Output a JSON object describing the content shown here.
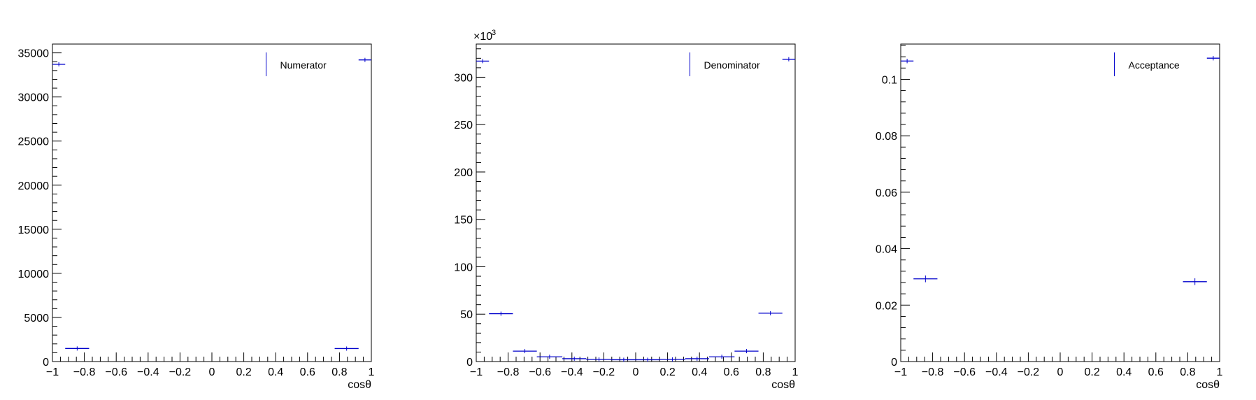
{
  "chart_data": [
    {
      "type": "histogram",
      "xlabel": "cosθ",
      "ylabel": "",
      "xlim": [
        -1,
        1
      ],
      "ylim": [
        0,
        36000
      ],
      "y_multiplier_label": "",
      "x_ticks": [
        "−1",
        "−0.8",
        "−0.6",
        "−0.4",
        "−0.2",
        "0",
        "0.2",
        "0.4",
        "0.6",
        "0.8",
        "1"
      ],
      "y_ticks": [
        "0",
        "5000",
        "10000",
        "15000",
        "20000",
        "25000",
        "30000",
        "35000"
      ],
      "y_tick_values": [
        0,
        5000,
        10000,
        15000,
        20000,
        25000,
        30000,
        35000
      ],
      "legend": {
        "label": "Numerator",
        "position": "top-right"
      },
      "line_color": "#0000cc",
      "bins": [
        {
          "x0": -1.0,
          "x1": -0.92,
          "y": 33700,
          "err": 180
        },
        {
          "x0": -0.92,
          "x1": -0.77,
          "y": 1480,
          "err": 40
        },
        {
          "x0": 0.77,
          "x1": 0.92,
          "y": 1470,
          "err": 40
        },
        {
          "x0": 0.92,
          "x1": 1.0,
          "y": 34200,
          "err": 180
        }
      ]
    },
    {
      "type": "histogram",
      "xlabel": "cosθ",
      "ylabel": "",
      "xlim": [
        -1,
        1
      ],
      "ylim": [
        0,
        335
      ],
      "y_multiplier_label": "×10",
      "y_multiplier_exp": "3",
      "x_ticks": [
        "−1",
        "−0.8",
        "−0.6",
        "−0.4",
        "−0.2",
        "0",
        "0.2",
        "0.4",
        "0.6",
        "0.8",
        "1"
      ],
      "y_ticks": [
        "0",
        "50",
        "100",
        "150",
        "200",
        "250",
        "300"
      ],
      "y_tick_values": [
        0,
        50,
        100,
        150,
        200,
        250,
        300
      ],
      "legend": {
        "label": "Denominator",
        "position": "top-right"
      },
      "line_color": "#0000cc",
      "bins": [
        {
          "x0": -1.0,
          "x1": -0.92,
          "y": 317,
          "err": 1
        },
        {
          "x0": -0.92,
          "x1": -0.77,
          "y": 50.5,
          "err": 0.4
        },
        {
          "x0": -0.77,
          "x1": -0.62,
          "y": 11,
          "err": 0.3
        },
        {
          "x0": -0.62,
          "x1": -0.46,
          "y": 5,
          "err": 0.2
        },
        {
          "x0": -0.46,
          "x1": -0.31,
          "y": 3,
          "err": 0.2
        },
        {
          "x0": -0.31,
          "x1": -0.15,
          "y": 2.2,
          "err": 0.1
        },
        {
          "x0": -0.15,
          "x1": 0.0,
          "y": 1.9,
          "err": 0.1
        },
        {
          "x0": 0.0,
          "x1": 0.15,
          "y": 1.9,
          "err": 0.1
        },
        {
          "x0": 0.15,
          "x1": 0.31,
          "y": 2.2,
          "err": 0.1
        },
        {
          "x0": 0.31,
          "x1": 0.46,
          "y": 3,
          "err": 0.2
        },
        {
          "x0": 0.46,
          "x1": 0.62,
          "y": 5,
          "err": 0.2
        },
        {
          "x0": 0.62,
          "x1": 0.77,
          "y": 11,
          "err": 0.3
        },
        {
          "x0": 0.77,
          "x1": 0.92,
          "y": 51,
          "err": 0.4
        },
        {
          "x0": 0.92,
          "x1": 1.0,
          "y": 319,
          "err": 1
        }
      ]
    },
    {
      "type": "histogram",
      "xlabel": "cosθ",
      "ylabel": "",
      "xlim": [
        -1,
        1
      ],
      "ylim": [
        0,
        0.1125
      ],
      "y_multiplier_label": "",
      "x_ticks": [
        "−1",
        "−0.8",
        "−0.6",
        "−0.4",
        "−0.2",
        "0",
        "0.2",
        "0.4",
        "0.6",
        "0.8",
        "1"
      ],
      "y_ticks": [
        "0",
        "0.02",
        "0.04",
        "0.06",
        "0.08",
        "0.1"
      ],
      "y_tick_values": [
        0,
        0.02,
        0.04,
        0.06,
        0.08,
        0.1
      ],
      "legend": {
        "label": "Acceptance",
        "position": "top-right"
      },
      "line_color": "#0000cc",
      "bins": [
        {
          "x0": -1.0,
          "x1": -0.92,
          "y": 0.1065,
          "err": 0.0008
        },
        {
          "x0": -0.92,
          "x1": -0.77,
          "y": 0.0293,
          "err": 0.0012
        },
        {
          "x0": 0.77,
          "x1": 0.92,
          "y": 0.0283,
          "err": 0.0012
        },
        {
          "x0": 0.92,
          "x1": 1.0,
          "y": 0.1075,
          "err": 0.0008
        }
      ]
    }
  ]
}
